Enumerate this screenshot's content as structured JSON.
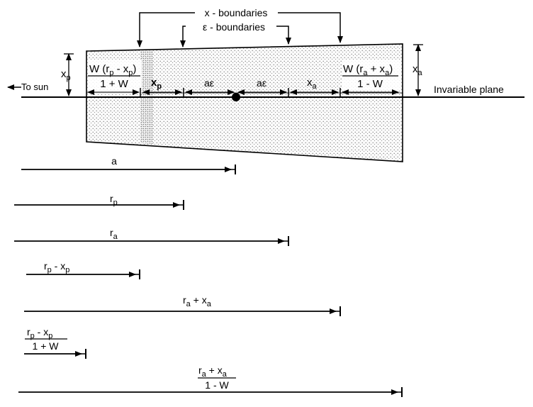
{
  "boundaries": {
    "x_boundaries": "x - boundaries",
    "eps_boundaries": "ε - boundaries"
  },
  "labels": {
    "to_sun": "To sun",
    "invariable_plane": "Invariable plane",
    "xp_left": {
      "main": "x",
      "sub": "p"
    },
    "xa_right": {
      "main": "x",
      "sub": "a"
    }
  },
  "inside": {
    "w_rp_num": {
      "a": "W (r",
      "sub": "p",
      "b": " - x",
      "sub2": "p",
      "c": ")"
    },
    "w_rp_den": "1 + W",
    "xp": {
      "main": "x",
      "sub": "p"
    },
    "ae1": "aε",
    "ae2": "aε",
    "xa": {
      "main": "x",
      "sub": "a"
    },
    "w_ra_num": {
      "a": "W (r",
      "sub": "a",
      "b": " + x",
      "sub2": "a",
      "c": ")"
    },
    "w_ra_den": "1 - W"
  },
  "lengths": {
    "a": "a",
    "rp": {
      "main": "r",
      "sub": "p"
    },
    "ra": {
      "main": "r",
      "sub": "a"
    },
    "rp_minus_xp": {
      "a": "r",
      "sub": "p",
      "b": " - x",
      "sub2": "p"
    },
    "ra_plus_xa": {
      "a": "r",
      "sub": "a",
      "b": " + x",
      "sub2": "a"
    },
    "rp_xp_over": {
      "a": "r",
      "sub": "p",
      "b": " - x",
      "sub2": "p",
      "den": "1 + W"
    },
    "ra_xa_over": {
      "a": "r",
      "sub": "a",
      "b": " + x",
      "sub2": "a",
      "den": "1 - W"
    }
  }
}
